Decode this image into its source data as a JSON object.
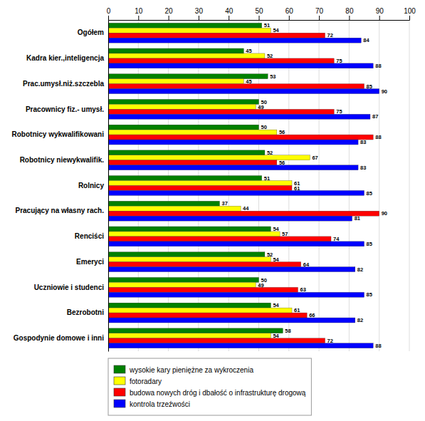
{
  "chart_data": {
    "type": "bar",
    "orientation": "horizontal",
    "categories": [
      "Ogółem",
      "Kadra kier.,inteligencja",
      "Prac.umysł.niż.szczebla",
      "Pracownicy fiz.- umysł.",
      "Robotnicy wykwalifikowani",
      "Robotnicy niewykwalifik.",
      "Rolnicy",
      "Pracujący na własny rach.",
      "Renciści",
      "Emeryci",
      "Uczniowie i studenci",
      "Bezrobotni",
      "Gospodynie domowe i inni"
    ],
    "series": [
      {
        "name": "wysokie kary pieniężne za wykroczenia",
        "color": "#008000",
        "values": [
          51,
          45,
          53,
          50,
          50,
          52,
          51,
          37,
          54,
          52,
          50,
          54,
          58
        ]
      },
      {
        "name": "fotoradary",
        "color": "#FFFF00",
        "values": [
          54,
          52,
          45,
          49,
          56,
          67,
          61,
          44,
          57,
          54,
          49,
          61,
          54
        ]
      },
      {
        "name": "budowa nowych dróg i dbałość o infrastrukturę drogową",
        "color": "#FF0000",
        "values": [
          72,
          75,
          85,
          75,
          88,
          56,
          61,
          90,
          74,
          64,
          63,
          66,
          72
        ]
      },
      {
        "name": "kontrola trzeźwości",
        "color": "#0000FF",
        "values": [
          84,
          88,
          90,
          87,
          83,
          83,
          85,
          81,
          85,
          82,
          85,
          82,
          88
        ]
      }
    ],
    "xlim": [
      0,
      100
    ],
    "xticks": [
      0,
      10,
      20,
      30,
      40,
      50,
      60,
      70,
      80,
      90,
      100
    ],
    "grid": true,
    "data_labels": true,
    "legend": "bottom"
  }
}
